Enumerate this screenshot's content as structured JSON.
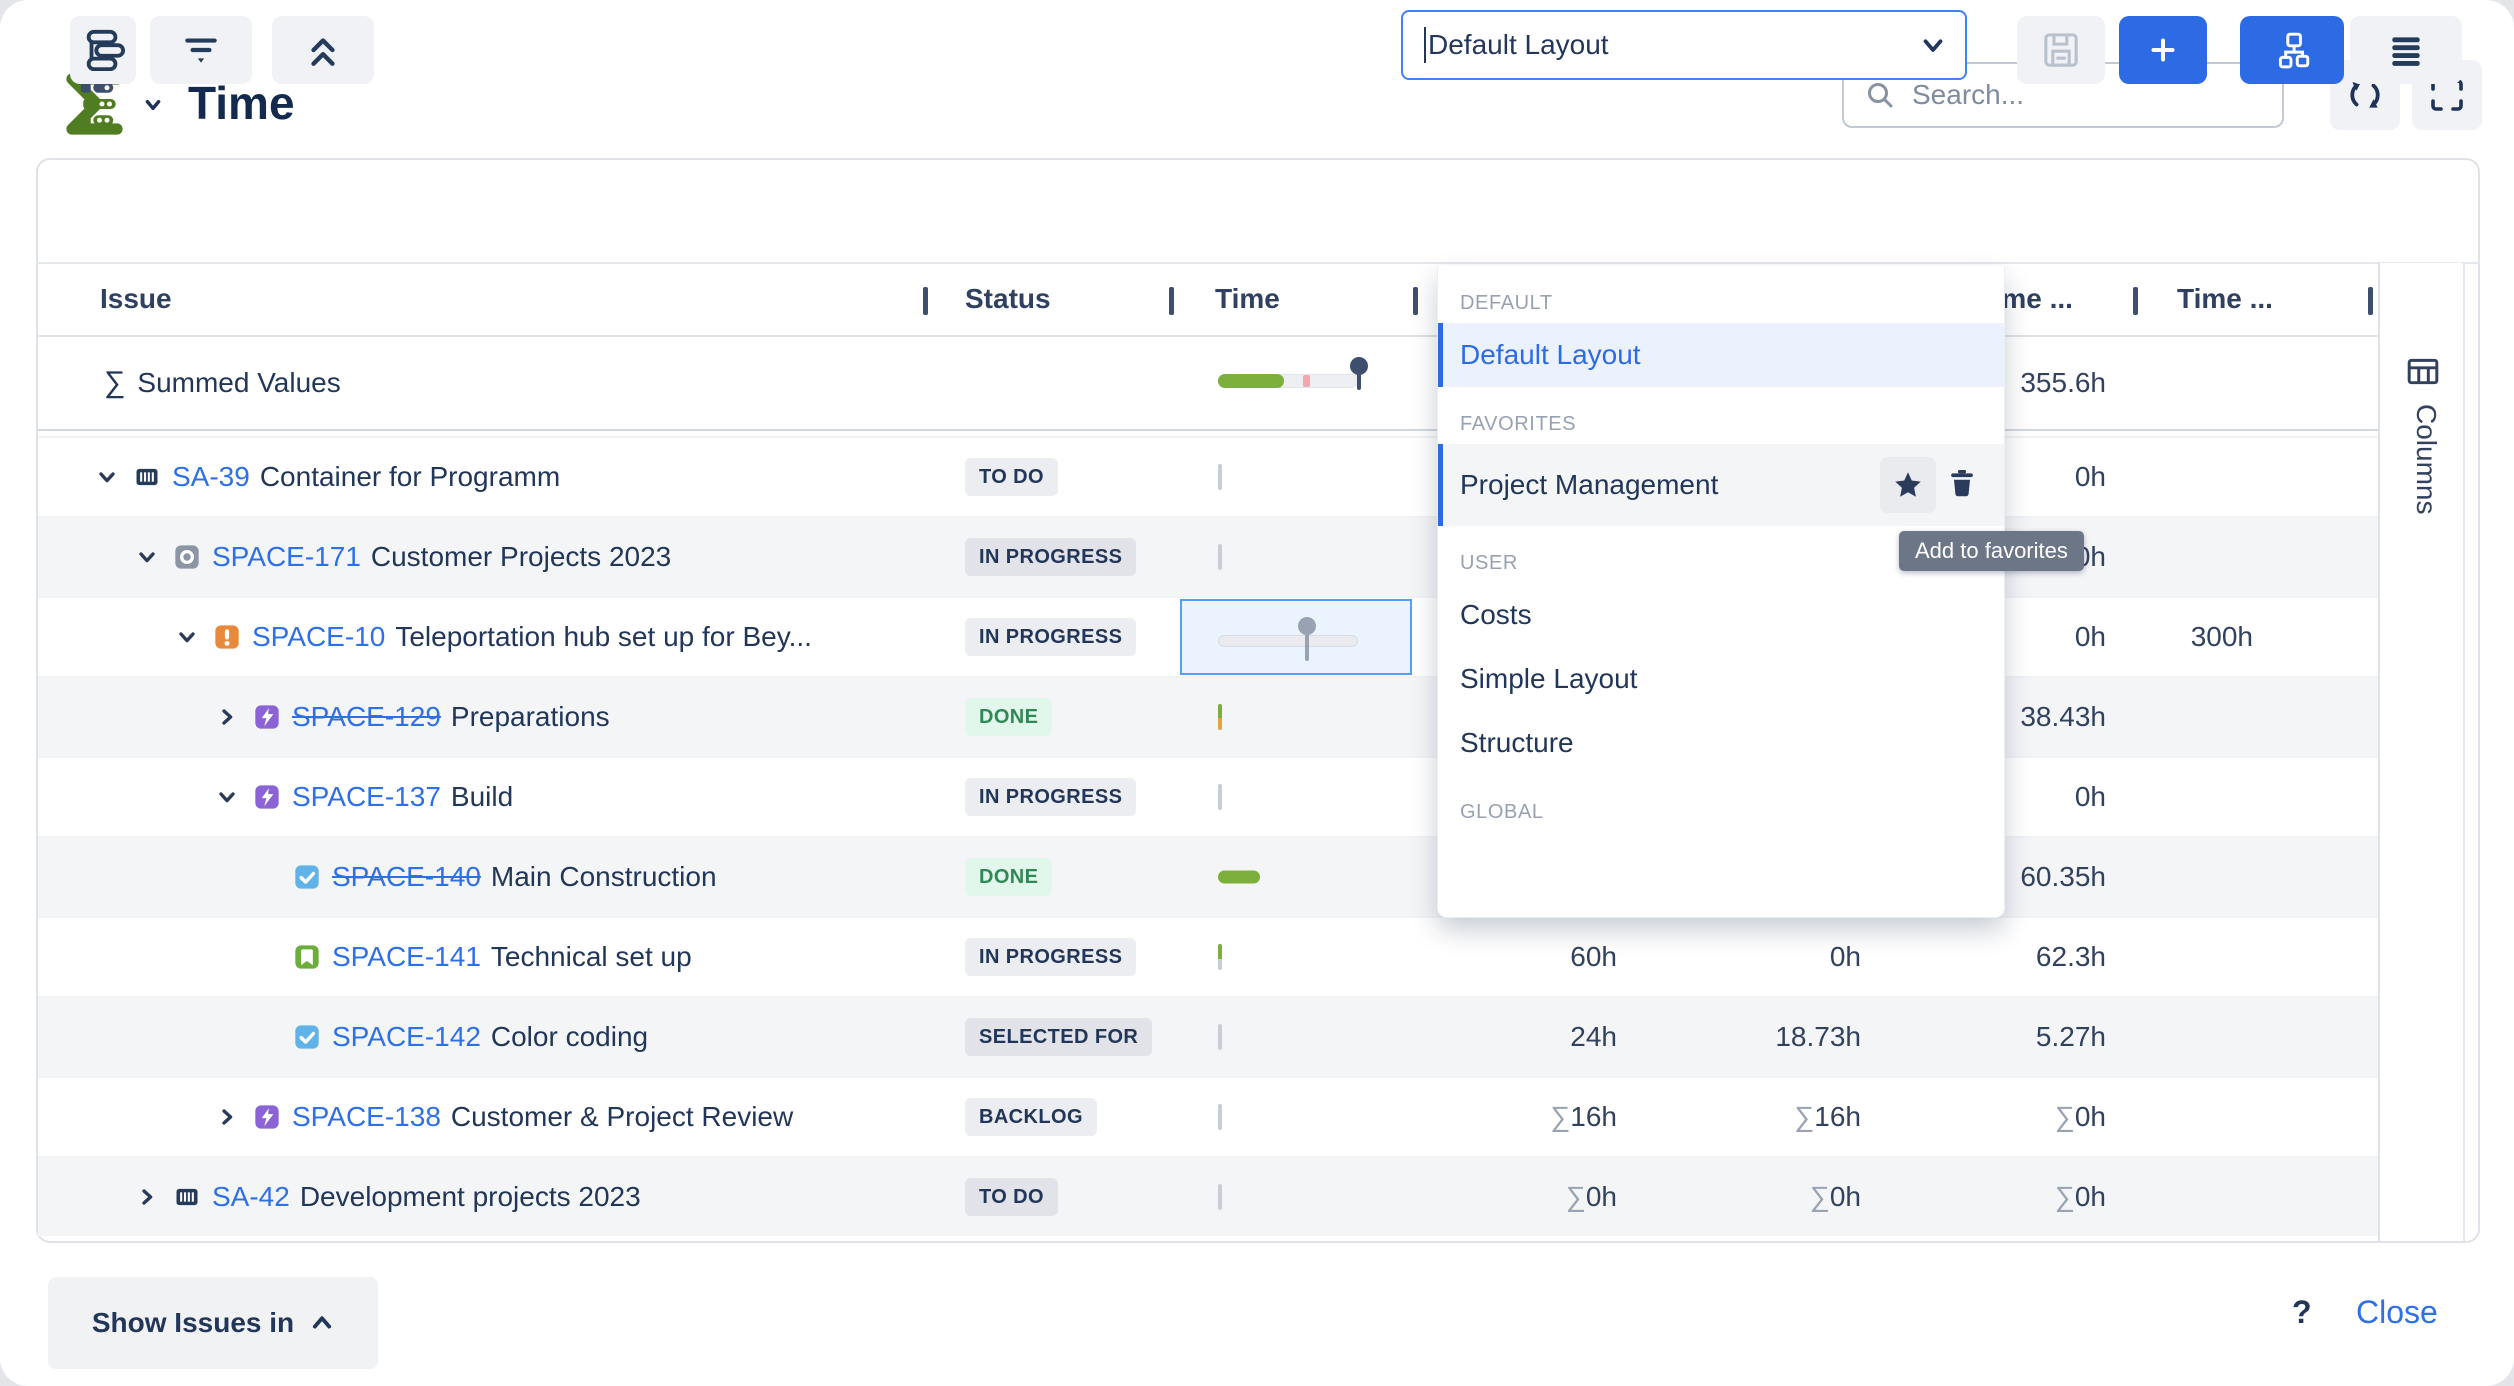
{
  "header": {
    "title": "Time",
    "search_placeholder": "Search..."
  },
  "toolbar": {
    "layout_value": "Default Layout"
  },
  "layout_menu": {
    "tooltip": "Add to favorites",
    "sections": [
      {
        "label": "DEFAULT",
        "items": [
          {
            "label": "Default Layout",
            "state": "selected"
          }
        ]
      },
      {
        "label": "FAVORITES",
        "items": [
          {
            "label": "Project Management",
            "state": "hover",
            "actions": true
          }
        ]
      },
      {
        "label": "USER",
        "items": [
          {
            "label": "Costs"
          },
          {
            "label": "Simple Layout"
          },
          {
            "label": "Structure"
          }
        ]
      },
      {
        "label": "GLOBAL",
        "items": []
      }
    ]
  },
  "table": {
    "columns": [
      "Issue",
      "Status",
      "Time",
      "Time ...",
      "Time ..."
    ],
    "summary_row": {
      "label": "Summed Values",
      "values": [
        "",
        "",
        "355.6h",
        ""
      ]
    },
    "rows": [
      {
        "indent": 0,
        "chevron": "down",
        "icon": "container-icon",
        "key": "SA-39",
        "struck": false,
        "summary": "Container for Programm",
        "status": {
          "label": "TO DO",
          "type": "gray"
        },
        "widget": "tick",
        "tickColor": "gray",
        "values": [
          "",
          "",
          "0h",
          ""
        ]
      },
      {
        "indent": 1,
        "chevron": "down",
        "icon": "component-icon",
        "key": "SPACE-171",
        "struck": false,
        "summary": "Customer Projects 2023",
        "status": {
          "label": "IN PROGRESS",
          "type": "gray"
        },
        "widget": "tick",
        "tickColor": "gray",
        "values": [
          "",
          "",
          "0h",
          ""
        ]
      },
      {
        "indent": 2,
        "chevron": "down",
        "icon": "risk-icon",
        "key": "SPACE-10",
        "struck": false,
        "summary": "Teleportation hub set up for Bey...",
        "status": {
          "label": "IN PROGRESS",
          "type": "gray"
        },
        "widget": "slider",
        "tickColor": "",
        "values": [
          "",
          "",
          "0h",
          "300h"
        ]
      },
      {
        "indent": 3,
        "chevron": "right",
        "icon": "bolt-icon",
        "key": "SPACE-129",
        "struck": true,
        "summary": "Preparations",
        "status": {
          "label": "DONE",
          "type": "green"
        },
        "widget": "tick",
        "tickColor": "mixed",
        "values": [
          "",
          "",
          "38.43h",
          ""
        ]
      },
      {
        "indent": 3,
        "chevron": "down",
        "icon": "bolt-icon",
        "key": "SPACE-137",
        "struck": false,
        "summary": "Build",
        "status": {
          "label": "IN PROGRESS",
          "type": "gray"
        },
        "widget": "tick",
        "tickColor": "gray",
        "values": [
          "",
          "",
          "0h",
          ""
        ]
      },
      {
        "indent": 4,
        "chevron": null,
        "icon": "task-icon",
        "key": "SPACE-140",
        "struck": true,
        "summary": "Main Construction",
        "status": {
          "label": "DONE",
          "type": "green"
        },
        "widget": "bar",
        "tickColor": "",
        "values": [
          "",
          "",
          "60.35h",
          ""
        ]
      },
      {
        "indent": 4,
        "chevron": null,
        "icon": "story-icon",
        "key": "SPACE-141",
        "struck": false,
        "summary": "Technical set up",
        "status": {
          "label": "IN PROGRESS",
          "type": "gray"
        },
        "widget": "tick",
        "tickColor": "green",
        "values": [
          "60h",
          "0h",
          "62.3h",
          ""
        ]
      },
      {
        "indent": 4,
        "chevron": null,
        "icon": "task-icon",
        "key": "SPACE-142",
        "struck": false,
        "summary": "Color coding",
        "status": {
          "label": "SELECTED FOR",
          "type": "gray"
        },
        "widget": "tick",
        "tickColor": "gray",
        "values": [
          "24h",
          "18.73h",
          "5.27h",
          ""
        ]
      },
      {
        "indent": 3,
        "chevron": "right",
        "icon": "bolt-icon",
        "key": "SPACE-138",
        "struck": false,
        "summary": "Customer & Project Review",
        "status": {
          "label": "BACKLOG",
          "type": "gray"
        },
        "widget": "tick",
        "tickColor": "gray",
        "values": [
          "∑16h",
          "∑16h",
          "∑0h",
          ""
        ]
      },
      {
        "indent": 1,
        "chevron": "right",
        "icon": "container-icon",
        "key": "SA-42",
        "struck": false,
        "summary": "Development projects 2023",
        "status": {
          "label": "TO DO",
          "type": "gray"
        },
        "widget": "tick",
        "tickColor": "gray",
        "values": [
          "∑0h",
          "∑0h",
          "∑0h",
          ""
        ]
      }
    ]
  },
  "sidebar": {
    "label": "Columns"
  },
  "footer": {
    "show_issues_label": "Show Issues in",
    "help_label": "?",
    "close_label": "Close"
  },
  "colors": {
    "accent_blue": "#2D6BE4",
    "link_blue": "#2E70E8",
    "progress_green": "#7CAF3B",
    "done_green": "#2F8A57",
    "navy_text": "#22365A"
  }
}
